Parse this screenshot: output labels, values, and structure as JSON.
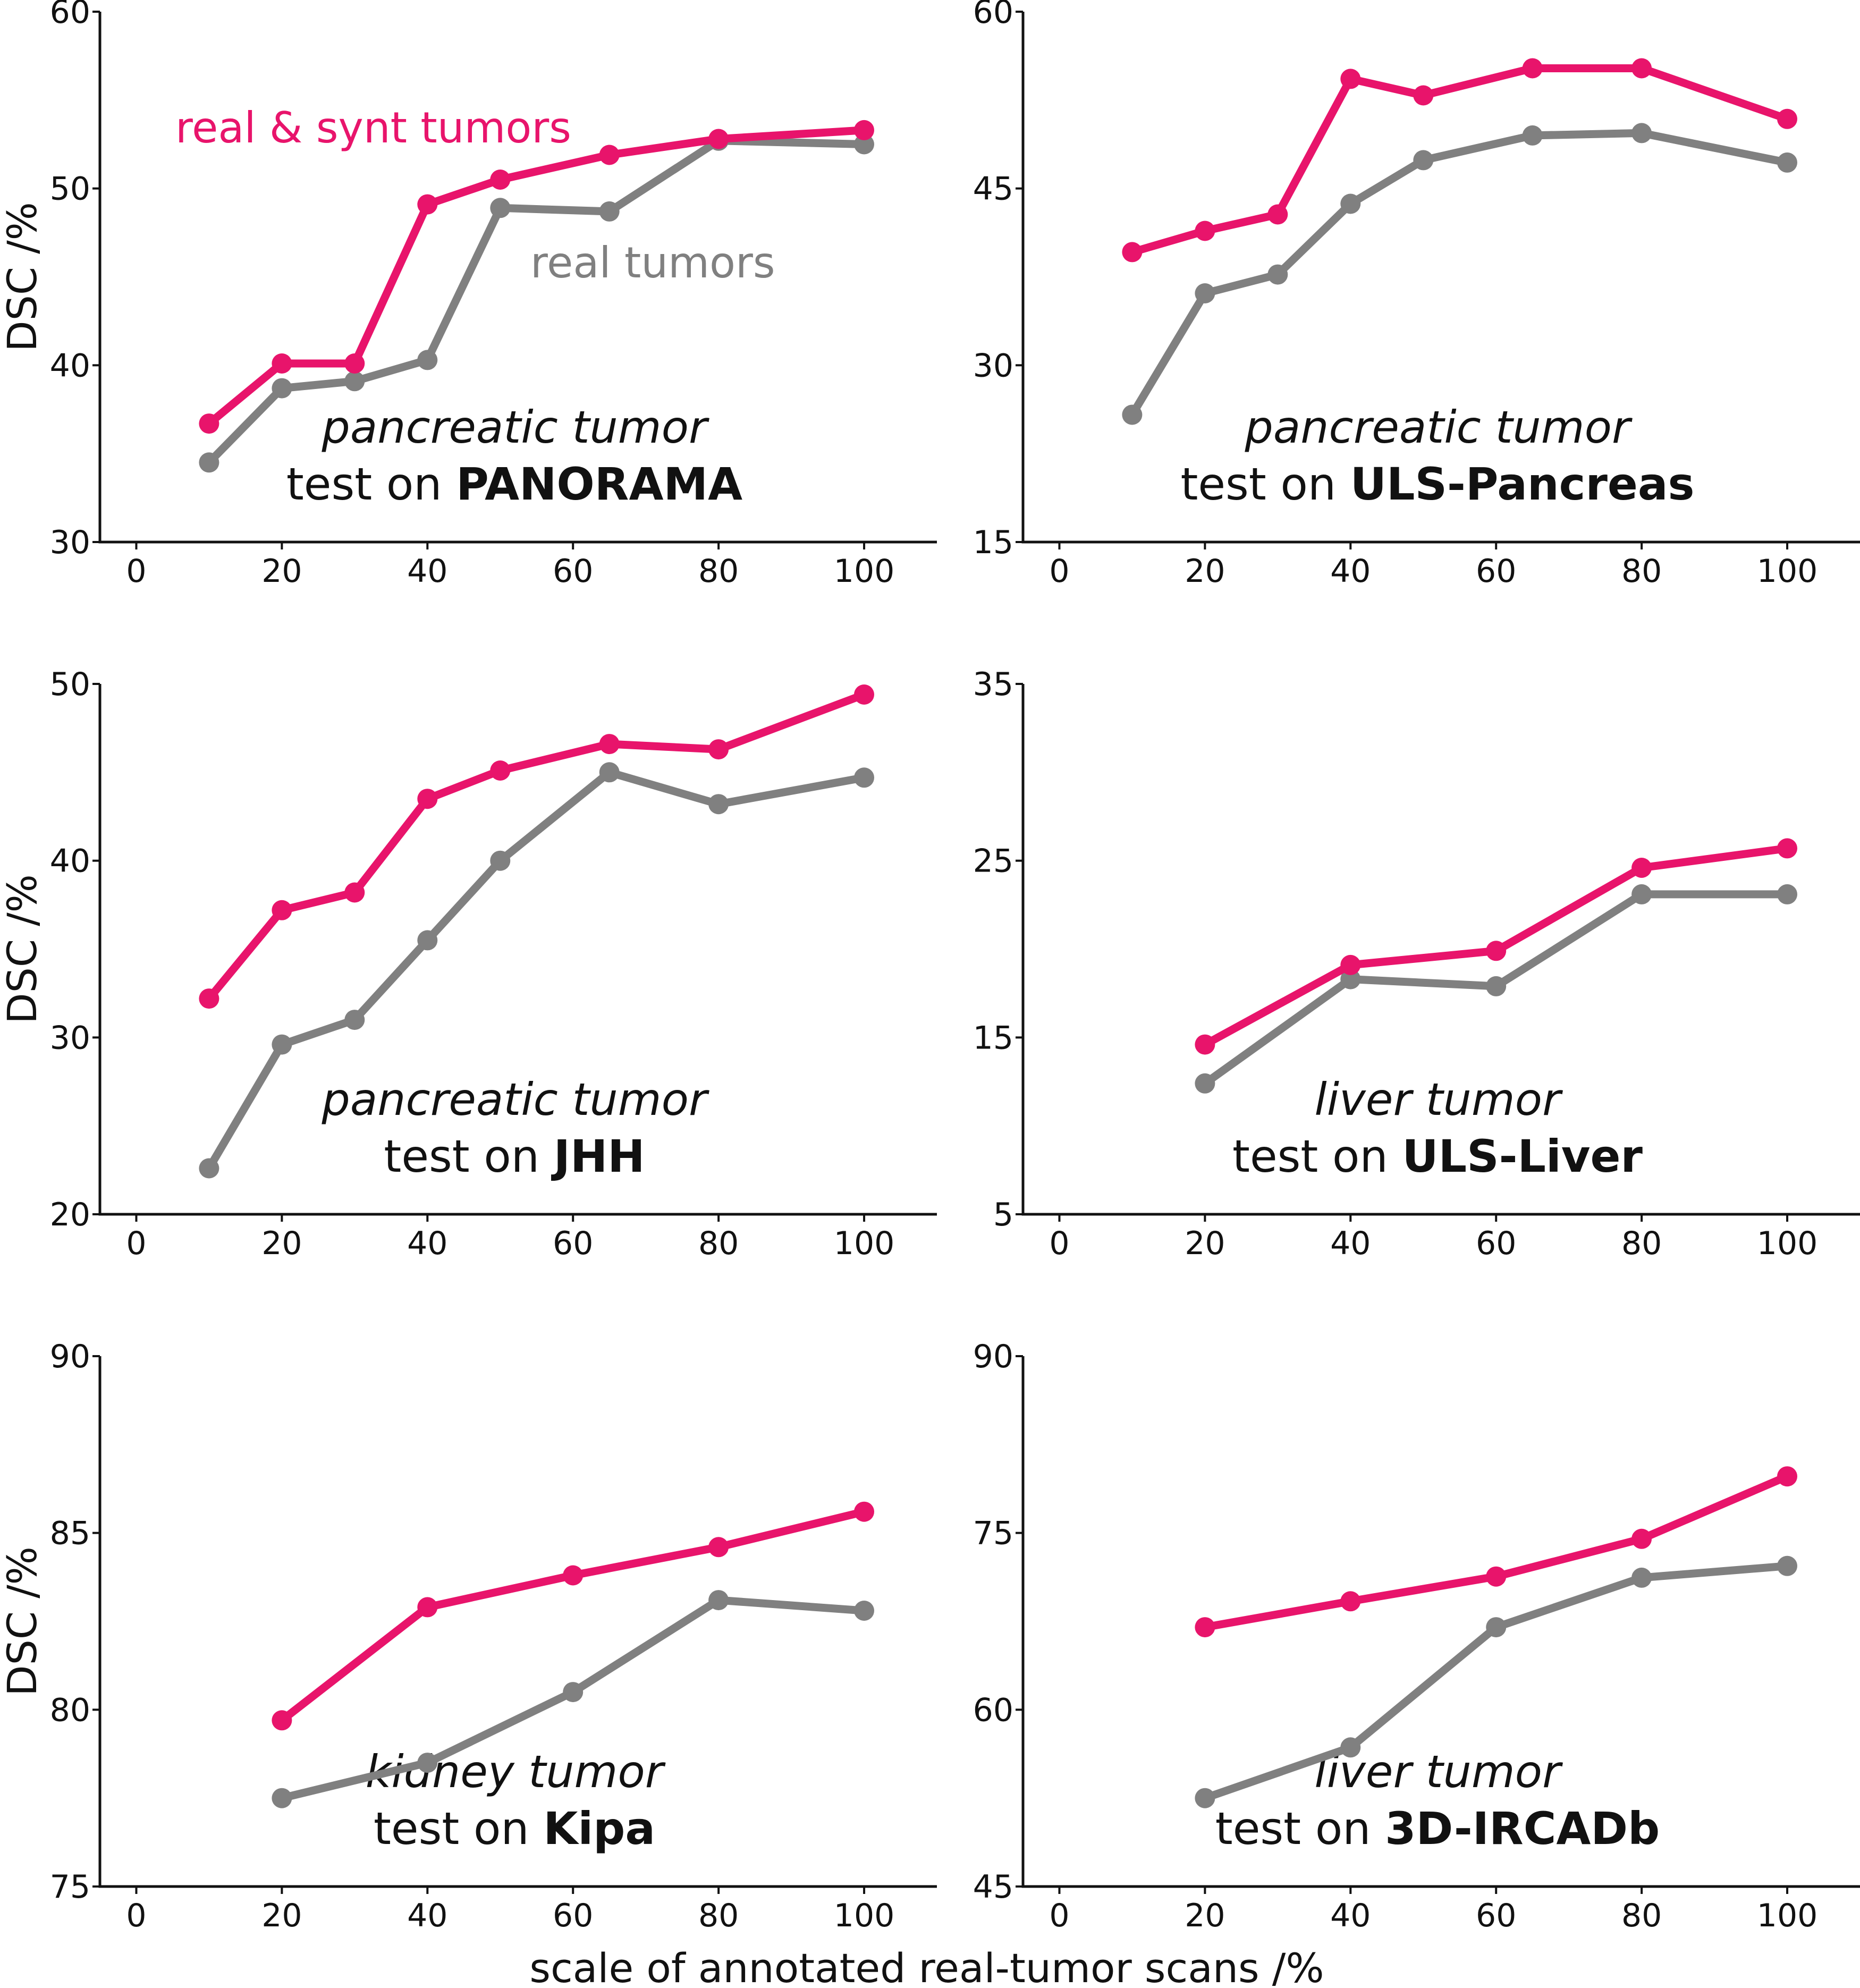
{
  "colors": {
    "synt": "#e8146b",
    "real": "#808080"
  },
  "figure": {
    "xlabel": "scale of annotated real-tumor scans /%",
    "legend": {
      "synt": "real & synt tumors",
      "real": "real tumors"
    }
  },
  "chart_data": [
    {
      "type": "line",
      "ylabel": "DSC /%",
      "xlim": [
        -5,
        110
      ],
      "ylim": [
        30,
        60
      ],
      "xticks": [
        0,
        20,
        40,
        60,
        80,
        100
      ],
      "yticks": [
        30,
        40,
        50,
        60
      ],
      "caption_italic": "pancreatic tumor",
      "caption_prefix": "test on ",
      "caption_bold": "PANORAMA",
      "series": [
        {
          "name": "real & synt tumors",
          "color": "#e8146b",
          "x": [
            10,
            20,
            30,
            40,
            50,
            65,
            80,
            100
          ],
          "y": [
            36.7,
            40.1,
            40.1,
            49.1,
            50.5,
            51.9,
            52.8,
            53.3
          ]
        },
        {
          "name": "real tumors",
          "color": "#808080",
          "x": [
            10,
            20,
            30,
            40,
            50,
            65,
            80,
            100
          ],
          "y": [
            34.5,
            38.7,
            39.1,
            40.3,
            48.9,
            48.7,
            52.7,
            52.5
          ]
        }
      ]
    },
    {
      "type": "line",
      "ylabel": "",
      "xlim": [
        -5,
        110
      ],
      "ylim": [
        15,
        60
      ],
      "xticks": [
        0,
        20,
        40,
        60,
        80,
        100
      ],
      "yticks": [
        15,
        30,
        45,
        60
      ],
      "caption_italic": "pancreatic tumor",
      "caption_prefix": "test on ",
      "caption_bold": "ULS-Pancreas",
      "series": [
        {
          "name": "real & synt tumors",
          "color": "#e8146b",
          "x": [
            10,
            20,
            30,
            40,
            50,
            65,
            80,
            100
          ],
          "y": [
            39.6,
            41.4,
            42.8,
            54.3,
            52.9,
            55.2,
            55.2,
            50.9
          ]
        },
        {
          "name": "real tumors",
          "color": "#808080",
          "x": [
            10,
            20,
            30,
            40,
            50,
            65,
            80,
            100
          ],
          "y": [
            25.8,
            36.1,
            37.7,
            43.7,
            47.4,
            49.5,
            49.7,
            47.2
          ]
        }
      ]
    },
    {
      "type": "line",
      "ylabel": "DSC /%",
      "xlim": [
        -5,
        110
      ],
      "ylim": [
        20,
        50
      ],
      "xticks": [
        0,
        20,
        40,
        60,
        80,
        100
      ],
      "yticks": [
        20,
        30,
        40,
        50
      ],
      "caption_italic": "pancreatic tumor",
      "caption_prefix": "test on ",
      "caption_bold": "JHH",
      "series": [
        {
          "name": "real & synt tumors",
          "color": "#e8146b",
          "x": [
            10,
            20,
            30,
            40,
            50,
            65,
            80,
            100
          ],
          "y": [
            32.2,
            37.2,
            38.2,
            43.5,
            45.1,
            46.6,
            46.3,
            49.4
          ]
        },
        {
          "name": "real tumors",
          "color": "#808080",
          "x": [
            10,
            20,
            30,
            40,
            50,
            65,
            80,
            100
          ],
          "y": [
            22.6,
            29.6,
            31.0,
            35.5,
            40.0,
            45.0,
            43.2,
            44.7
          ]
        }
      ]
    },
    {
      "type": "line",
      "ylabel": "",
      "xlim": [
        -5,
        110
      ],
      "ylim": [
        5,
        35
      ],
      "xticks": [
        0,
        20,
        40,
        60,
        80,
        100
      ],
      "yticks": [
        5,
        15,
        25,
        35
      ],
      "caption_italic": "liver tumor",
      "caption_prefix": "test on ",
      "caption_bold": "ULS-Liver",
      "series": [
        {
          "name": "real & synt tumors",
          "color": "#e8146b",
          "x": [
            20,
            40,
            60,
            80,
            100
          ],
          "y": [
            14.6,
            19.1,
            19.9,
            24.6,
            25.7
          ]
        },
        {
          "name": "real tumors",
          "color": "#808080",
          "x": [
            20,
            40,
            60,
            80,
            100
          ],
          "y": [
            12.4,
            18.3,
            17.9,
            23.1,
            23.1
          ]
        }
      ]
    },
    {
      "type": "line",
      "ylabel": "DSC /%",
      "xlim": [
        -5,
        110
      ],
      "ylim": [
        75,
        90
      ],
      "xticks": [
        0,
        20,
        40,
        60,
        80,
        100
      ],
      "yticks": [
        75,
        80,
        85,
        90
      ],
      "caption_italic": "kidney tumor",
      "caption_prefix": "test on ",
      "caption_bold": "Kipa",
      "series": [
        {
          "name": "real & synt tumors",
          "color": "#e8146b",
          "x": [
            20,
            40,
            60,
            80,
            100
          ],
          "y": [
            79.7,
            82.9,
            83.8,
            84.6,
            85.6
          ]
        },
        {
          "name": "real tumors",
          "color": "#808080",
          "x": [
            20,
            40,
            60,
            80,
            100
          ],
          "y": [
            77.5,
            78.5,
            80.5,
            83.1,
            82.8
          ]
        }
      ]
    },
    {
      "type": "line",
      "ylabel": "",
      "xlim": [
        -5,
        110
      ],
      "ylim": [
        45,
        90
      ],
      "xticks": [
        0,
        20,
        40,
        60,
        80,
        100
      ],
      "yticks": [
        45,
        60,
        75,
        90
      ],
      "caption_italic": "liver tumor",
      "caption_prefix": "test on ",
      "caption_bold": "3D-IRCADb",
      "series": [
        {
          "name": "real & synt tumors",
          "color": "#e8146b",
          "x": [
            20,
            40,
            60,
            80,
            100
          ],
          "y": [
            67.0,
            69.2,
            71.3,
            74.5,
            79.8
          ]
        },
        {
          "name": "real tumors",
          "color": "#808080",
          "x": [
            20,
            40,
            60,
            80,
            100
          ],
          "y": [
            52.5,
            56.8,
            67.0,
            71.2,
            72.2
          ]
        }
      ]
    }
  ]
}
